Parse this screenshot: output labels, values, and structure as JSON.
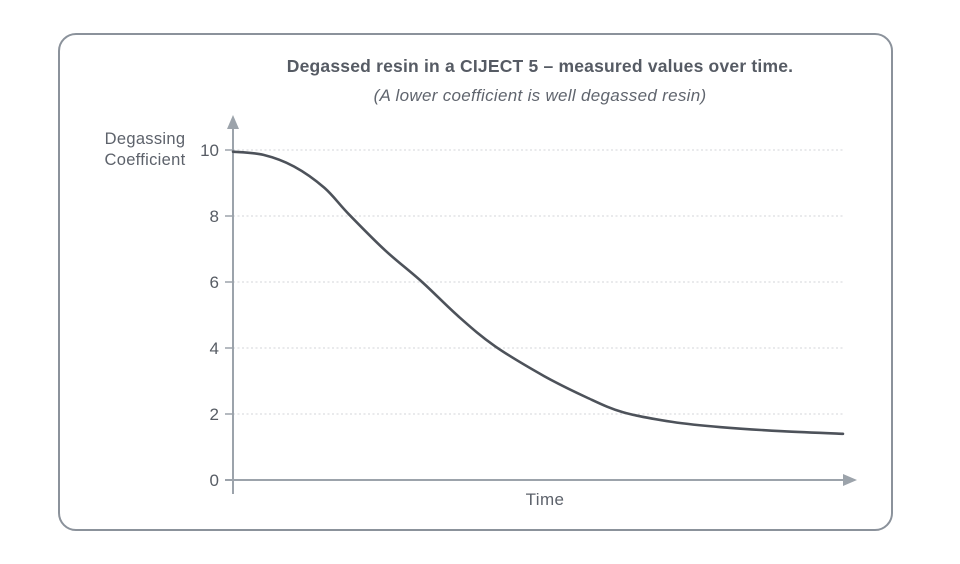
{
  "page": {
    "background": "#ffffff"
  },
  "card": {
    "border_color": "#8b929b"
  },
  "chart_data": {
    "type": "line",
    "title": "Degassed resin in a CIJECT 5 – measured values over time.",
    "subtitle": "(A lower coefficient is well degassed resin)",
    "ylabel": "Degassing\nCoefficient",
    "xlabel": "Time",
    "ylim": [
      0,
      10
    ],
    "yticks": [
      0,
      2,
      4,
      6,
      8,
      10
    ],
    "grid": "horizontal-dashed",
    "legend": "none",
    "x_axis_arrow": true,
    "y_axis_arrow": true,
    "series": [
      {
        "name": "Degassing coefficient over time",
        "points": [
          [
            0.0,
            9.95
          ],
          [
            0.05,
            9.85
          ],
          [
            0.1,
            9.5
          ],
          [
            0.15,
            8.85
          ],
          [
            0.19,
            8.05
          ],
          [
            0.25,
            6.95
          ],
          [
            0.31,
            6.0
          ],
          [
            0.37,
            4.95
          ],
          [
            0.43,
            4.05
          ],
          [
            0.51,
            3.15
          ],
          [
            0.58,
            2.5
          ],
          [
            0.64,
            2.05
          ],
          [
            0.72,
            1.76
          ],
          [
            0.8,
            1.6
          ],
          [
            0.9,
            1.48
          ],
          [
            1.0,
            1.4
          ]
        ]
      }
    ],
    "colors": {
      "curve": "#4d525a",
      "axis": "#9ca3ab",
      "grid": "#dcdde0",
      "text": "#575c64"
    }
  }
}
